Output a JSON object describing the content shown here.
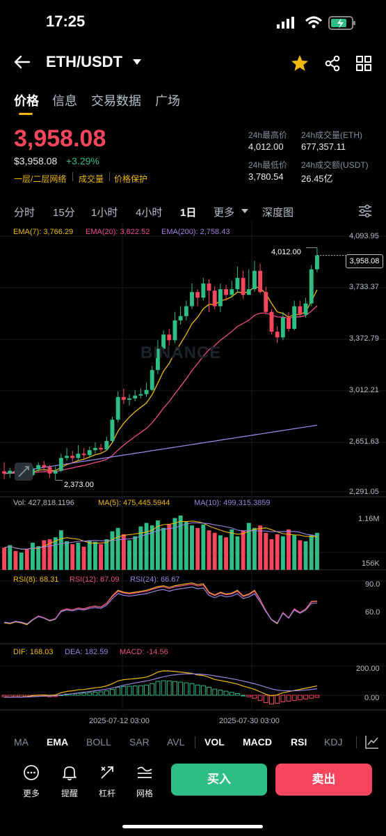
{
  "status_bar": {
    "time": "17:25"
  },
  "header": {
    "pair": "ETH/USDT"
  },
  "tabs": [
    "价格",
    "信息",
    "交易数据",
    "广场"
  ],
  "ticker": {
    "price": "3,958.08",
    "usd_price": "$3,958.08",
    "change": "+3.29%",
    "links": [
      "一层/二层网络",
      "成交量",
      "价格保护"
    ],
    "stats": [
      {
        "label": "24h最高价",
        "value": "4,012.00"
      },
      {
        "label": "24h成交量(ETH)",
        "value": "677,357.11"
      },
      {
        "label": "24h最低价",
        "value": "3,780.54"
      },
      {
        "label": "24h成交额(USDT)",
        "value": "26.45亿"
      }
    ]
  },
  "intervals": [
    "分时",
    "15分",
    "1小时",
    "4小时",
    "1日",
    "更多",
    "深度图"
  ],
  "ema_legend": {
    "ema7": "EMA(7): 3,766.29",
    "ema20": "EMA(20): 3,622.52",
    "ema200": "EMA(200): 2,758.43"
  },
  "price_axis": [
    "4,093.95",
    "3,733.37",
    "3,372.79",
    "3,012.21",
    "2,651.63",
    "2,291.05"
  ],
  "high_marker": "4,012.00",
  "low_marker": "2,373.00",
  "current_price_tag": "3,958.08",
  "watermark": "BINANCE",
  "vol_legend": {
    "vol": "Vol: 427,818.1196",
    "ma5": "MA(5): 475,445.5944",
    "ma10": "MA(10): 499,315.3859"
  },
  "vol_axis": [
    "1.16M",
    "156K"
  ],
  "rsi_legend": {
    "rsi8": "RSI(8): 68.31",
    "rsi12": "RSI(12): 67.09",
    "rsi24": "RSI(24): 66.67"
  },
  "rsi_axis": [
    "90.0",
    "60.0"
  ],
  "macd_legend": {
    "dif": "DIF: 168.03",
    "dea": "DEA: 182.59",
    "macd": "MACD: -14.56"
  },
  "macd_axis": [
    "200.00",
    "0.00"
  ],
  "dates": [
    "2025-07-12 03:00",
    "2025-07-30 03:00"
  ],
  "indicator_tabs": [
    "MA",
    "EMA",
    "BOLL",
    "SAR",
    "AVL",
    "VOL",
    "MACD",
    "RSI",
    "KDJ"
  ],
  "toolbar": [
    {
      "label": "更多",
      "icon": "more-icon"
    },
    {
      "label": "提醒",
      "icon": "bell-icon"
    },
    {
      "label": "杠杆",
      "icon": "leverage-icon"
    },
    {
      "label": "网格",
      "icon": "grid-bot-icon"
    }
  ],
  "buy_label": "买入",
  "sell_label": "卖出",
  "colors": {
    "up": "#2ebd85",
    "down": "#f6465d",
    "accent": "#f0b90b",
    "ema7": "#f0b90b",
    "ema20": "#ec4a8c",
    "ema200": "#9b83e0"
  },
  "chart_data": {
    "type": "candlestick",
    "ylim": [
      2291.05,
      4093.95
    ],
    "candles": [
      [
        2436,
        2420,
        2500,
        2380
      ],
      [
        2420,
        2440,
        2460,
        2390
      ],
      [
        2440,
        2430,
        2470,
        2400
      ],
      [
        2430,
        2436,
        2450,
        2400
      ],
      [
        2436,
        2410,
        2445,
        2395
      ],
      [
        2410,
        2450,
        2470,
        2400
      ],
      [
        2450,
        2480,
        2500,
        2430
      ],
      [
        2480,
        2465,
        2510,
        2440
      ],
      [
        2465,
        2420,
        2480,
        2390
      ],
      [
        2420,
        2440,
        2470,
        2373
      ],
      [
        2440,
        2530,
        2560,
        2430
      ],
      [
        2530,
        2545,
        2600,
        2510
      ],
      [
        2545,
        2530,
        2580,
        2500
      ],
      [
        2530,
        2560,
        2620,
        2510
      ],
      [
        2560,
        2550,
        2600,
        2520
      ],
      [
        2550,
        2585,
        2610,
        2530
      ],
      [
        2585,
        2600,
        2640,
        2560
      ],
      [
        2600,
        2590,
        2630,
        2570
      ],
      [
        2590,
        2650,
        2680,
        2580
      ],
      [
        2650,
        2800,
        2820,
        2640
      ],
      [
        2800,
        2960,
        3000,
        2780
      ],
      [
        2960,
        2940,
        3020,
        2910
      ],
      [
        2940,
        2950,
        2980,
        2900
      ],
      [
        2950,
        2970,
        3010,
        2930
      ],
      [
        2970,
        2980,
        3020,
        2950
      ],
      [
        2980,
        3010,
        3060,
        2960
      ],
      [
        3010,
        3150,
        3180,
        3000
      ],
      [
        3150,
        3300,
        3360,
        3120
      ],
      [
        3300,
        3400,
        3430,
        3270
      ],
      [
        3400,
        3360,
        3440,
        3320
      ],
      [
        3360,
        3500,
        3560,
        3340
      ],
      [
        3500,
        3530,
        3600,
        3470
      ],
      [
        3530,
        3600,
        3640,
        3500
      ],
      [
        3600,
        3700,
        3760,
        3580
      ],
      [
        3700,
        3660,
        3720,
        3600
      ],
      [
        3660,
        3760,
        3800,
        3640
      ],
      [
        3760,
        3710,
        3790,
        3560
      ],
      [
        3710,
        3600,
        3740,
        3580
      ],
      [
        3600,
        3720,
        3760,
        3560
      ],
      [
        3720,
        3680,
        3750,
        3640
      ],
      [
        3680,
        3720,
        3780,
        3660
      ],
      [
        3720,
        3800,
        3880,
        3700
      ],
      [
        3800,
        3680,
        3850,
        3650
      ],
      [
        3680,
        3720,
        3860,
        3680
      ],
      [
        3720,
        3850,
        3920,
        3700
      ],
      [
        3850,
        3700,
        3900,
        3690
      ],
      [
        3700,
        3560,
        3740,
        3540
      ],
      [
        3560,
        3420,
        3580,
        3400
      ],
      [
        3420,
        3380,
        3460,
        3340
      ],
      [
        3380,
        3520,
        3560,
        3360
      ],
      [
        3520,
        3440,
        3560,
        3420
      ],
      [
        3440,
        3600,
        3640,
        3430
      ],
      [
        3600,
        3540,
        3640,
        3520
      ],
      [
        3540,
        3620,
        3660,
        3520
      ],
      [
        3620,
        3860,
        3890,
        3600
      ],
      [
        3860,
        3958.08,
        4012,
        3840
      ]
    ],
    "volume": [
      0.45,
      0.5,
      0.38,
      0.35,
      0.42,
      0.55,
      0.48,
      0.6,
      0.62,
      0.66,
      0.8,
      0.58,
      0.52,
      0.55,
      0.47,
      0.6,
      0.57,
      0.52,
      0.62,
      0.78,
      0.85,
      0.72,
      0.6,
      0.68,
      0.88,
      0.95,
      0.9,
      1.0,
      0.85,
      0.92,
      1.05,
      1.1,
      0.97,
      0.9,
      0.85,
      0.92,
      0.8,
      0.75,
      0.7,
      0.66,
      0.82,
      0.68,
      0.8,
      0.95,
      0.85,
      0.9,
      0.75,
      0.62,
      0.72,
      0.68,
      0.82,
      0.7,
      0.6,
      0.58,
      0.7,
      0.75
    ],
    "rsi": [
      45,
      44,
      46,
      45,
      43,
      48,
      52,
      50,
      47,
      49,
      58,
      60,
      59,
      61,
      60,
      62,
      63,
      62,
      66,
      74,
      80,
      78,
      77,
      78,
      79,
      80,
      82,
      84,
      85,
      83,
      85,
      86,
      87,
      88,
      86,
      87,
      78,
      75,
      78,
      76,
      77,
      80,
      74,
      76,
      80,
      70,
      58,
      48,
      44,
      56,
      50,
      60,
      56,
      60,
      68,
      68.31
    ],
    "macd": [
      -10,
      -12,
      -11,
      -13,
      -12,
      -8,
      -6,
      -7,
      -10,
      -9,
      2,
      8,
      10,
      14,
      15,
      18,
      22,
      24,
      30,
      40,
      55,
      60,
      62,
      64,
      66,
      70,
      80,
      95,
      100,
      98,
      94,
      90,
      85,
      80,
      70,
      66,
      55,
      42,
      35,
      28,
      20,
      12,
      0,
      -10,
      -20,
      -35,
      -50,
      -60,
      -55,
      -45,
      -40,
      -35,
      -30,
      -25,
      -20,
      -14.56
    ],
    "dates": [
      "2025-07-12 03:00",
      "2025-07-30 03:00"
    ]
  }
}
